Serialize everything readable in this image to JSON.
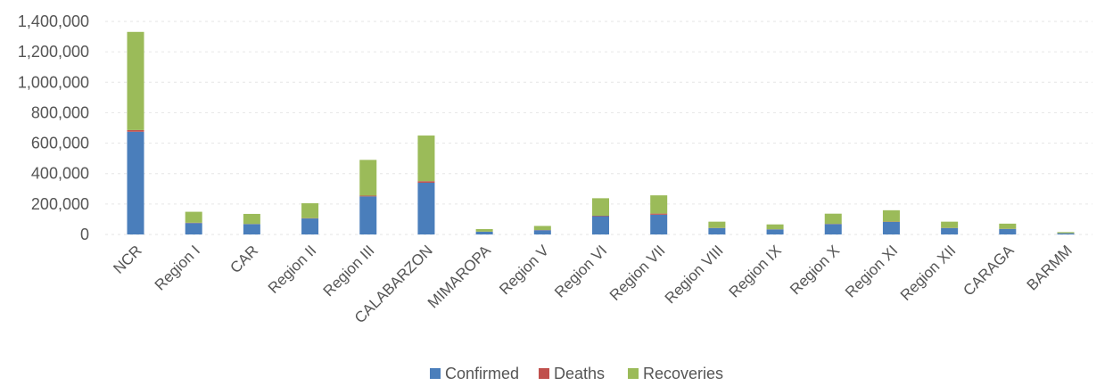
{
  "chart_data": {
    "type": "bar",
    "stacked": true,
    "categories": [
      "NCR",
      "Region I",
      "CAR",
      "Region II",
      "Region III",
      "CALABARZON",
      "MIMAROPA",
      "Region V",
      "Region VI",
      "Region VII",
      "Region VIII",
      "Region IX",
      "Region X",
      "Region XI",
      "Region XII",
      "CARAGA",
      "BARMM"
    ],
    "series": [
      {
        "name": "Confirmed",
        "color": "#4a7ebb",
        "values": [
          675000,
          75000,
          68000,
          105000,
          250000,
          340000,
          18000,
          28000,
          120000,
          130000,
          42000,
          33000,
          68000,
          82000,
          42000,
          36000,
          8000
        ]
      },
      {
        "name": "Deaths",
        "color": "#c0504d",
        "values": [
          11000,
          2000,
          1000,
          2000,
          5000,
          10000,
          500,
          1000,
          3000,
          7000,
          1000,
          1000,
          1500,
          2000,
          1000,
          1000,
          300
        ]
      },
      {
        "name": "Recoveries",
        "color": "#9bbb59",
        "values": [
          645000,
          72000,
          66000,
          98000,
          235000,
          300000,
          17000,
          27000,
          115000,
          120000,
          41000,
          32000,
          67000,
          75000,
          41000,
          34000,
          7000
        ]
      }
    ],
    "yticks": [
      "0",
      "200,000",
      "400,000",
      "600,000",
      "800,000",
      "1,000,000",
      "1,200,000",
      "1,400,000"
    ],
    "ylim": [
      0,
      1400000
    ],
    "grid": true,
    "legend_position": "bottom"
  }
}
